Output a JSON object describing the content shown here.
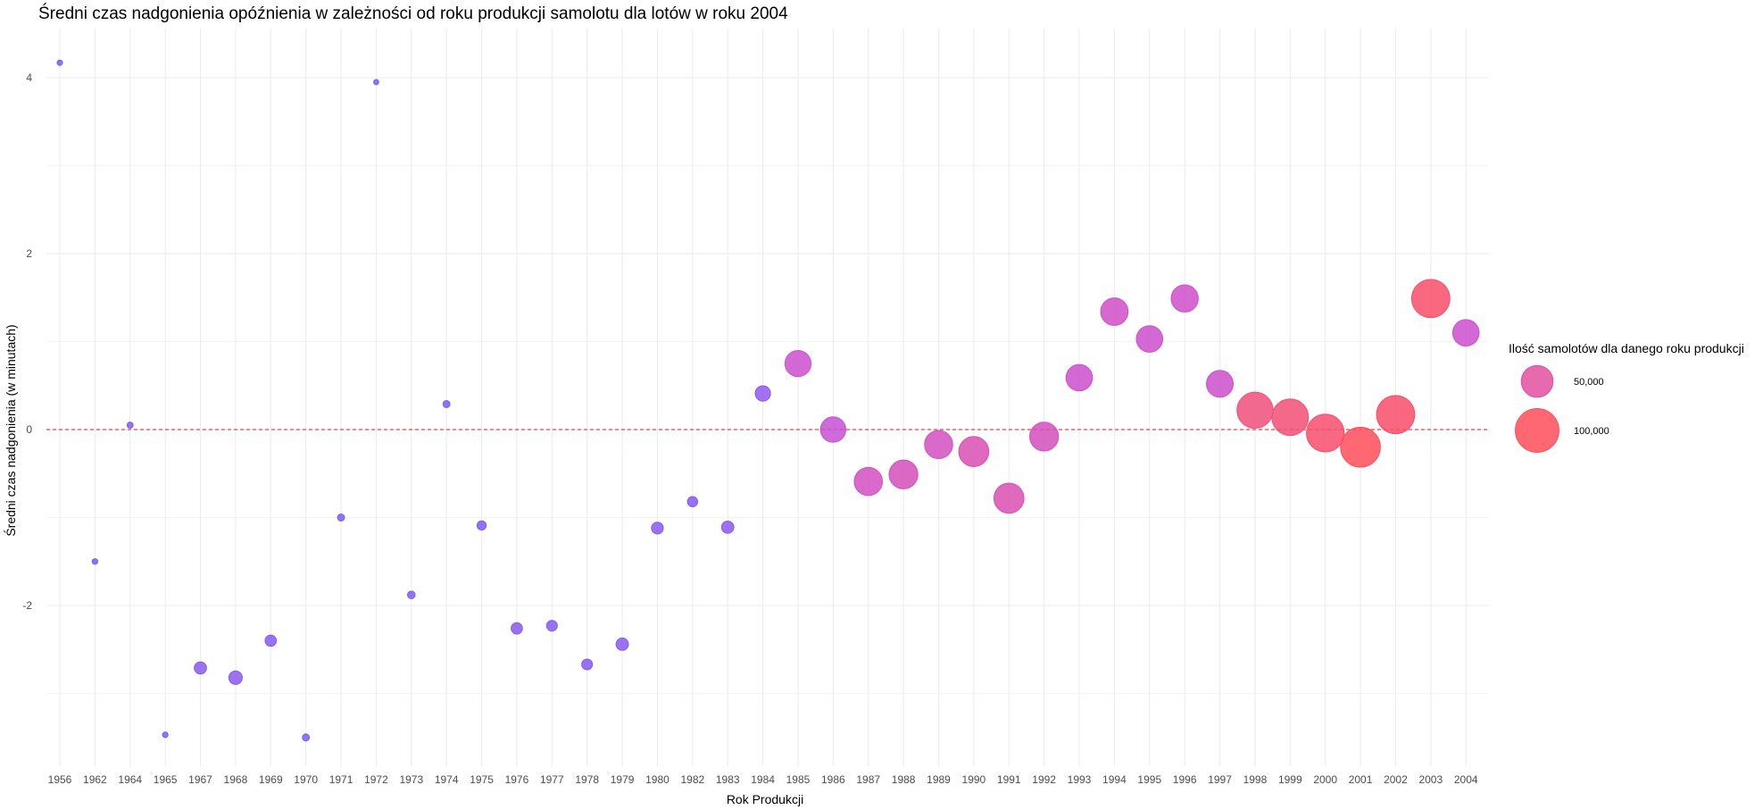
{
  "chart_data": {
    "type": "scatter",
    "title": "Średni czas nadgonienia opóźnienia w zależności od roku produkcji samolotu dla lotów w roku 2004",
    "xlabel": "Rok Produkcji",
    "ylabel": "Średni czas nadgonienia (w minutach)",
    "ylim": [
      -3.9,
      4.6
    ],
    "yticks": [
      -2,
      0,
      2,
      4
    ],
    "reference_line": {
      "y": 0,
      "style": "dashed",
      "color": "#e8434f"
    },
    "grid": true,
    "legend": {
      "title": "Ilość samolotów dla danego roku produkcji",
      "position": "right",
      "entries": [
        {
          "label": "50,000",
          "value": 50000
        },
        {
          "label": "100,000",
          "value": 100000
        }
      ]
    },
    "colors": {
      "low": "#7b5cf5",
      "mid": "#cc4fcf",
      "high": "#ff4d5a"
    },
    "x": [
      "1956",
      "1962",
      "1964",
      "1965",
      "1967",
      "1968",
      "1969",
      "1970",
      "1971",
      "1972",
      "1973",
      "1974",
      "1975",
      "1976",
      "1977",
      "1978",
      "1979",
      "1980",
      "1982",
      "1983",
      "1984",
      "1985",
      "1986",
      "1987",
      "1988",
      "1989",
      "1990",
      "1991",
      "1992",
      "1993",
      "1994",
      "1995",
      "1996",
      "1997",
      "1998",
      "1999",
      "2000",
      "2001",
      "2002",
      "2003",
      "2004"
    ],
    "y": [
      4.17,
      -1.5,
      0.05,
      -3.47,
      -2.71,
      -2.82,
      -2.4,
      -3.5,
      -1.0,
      3.95,
      -1.88,
      0.29,
      -1.09,
      -2.26,
      -2.23,
      -2.67,
      -2.44,
      -1.12,
      -0.82,
      -1.11,
      0.41,
      0.75,
      0.0,
      -0.59,
      -0.51,
      -0.17,
      -0.25,
      -0.78,
      -0.08,
      0.59,
      1.34,
      1.03,
      1.49,
      0.52,
      0.22,
      0.14,
      -0.04,
      -0.2,
      0.17,
      1.49,
      1.1
    ],
    "count": [
      300,
      350,
      500,
      350,
      5000,
      6500,
      4000,
      900,
      900,
      250,
      1200,
      900,
      2200,
      4000,
      3500,
      3500,
      5200,
      4500,
      3000,
      5000,
      9000,
      32000,
      30000,
      38000,
      40000,
      38000,
      44000,
      44000,
      40000,
      33000,
      36000,
      33000,
      35000,
      34000,
      66000,
      68000,
      73000,
      82000,
      75000,
      75000,
      33000
    ]
  }
}
